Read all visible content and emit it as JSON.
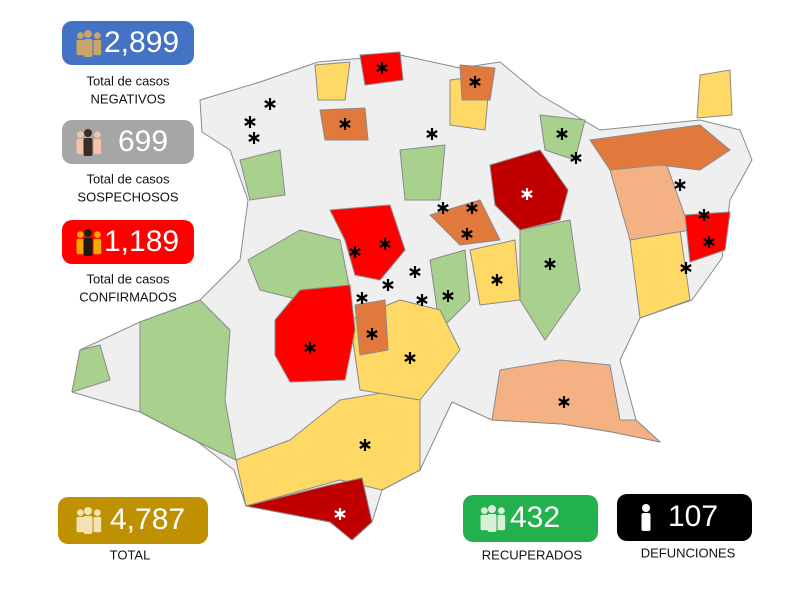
{
  "stats": [
    {
      "value": "2,899",
      "label": [
        "Total de casos",
        "NEGATIVOS"
      ]
    },
    {
      "value": "699",
      "label": [
        "Total de casos",
        "SOSPECHOSOS"
      ]
    },
    {
      "value": "1,189",
      "label": [
        "Total de casos",
        "CONFIRMADOS"
      ]
    },
    {
      "value": "4,787",
      "label": [
        "TOTAL"
      ]
    },
    {
      "value": "432",
      "label": [
        "RECUPERADOS"
      ]
    },
    {
      "value": "107",
      "label": [
        "DEFUNCIONES"
      ]
    }
  ]
}
